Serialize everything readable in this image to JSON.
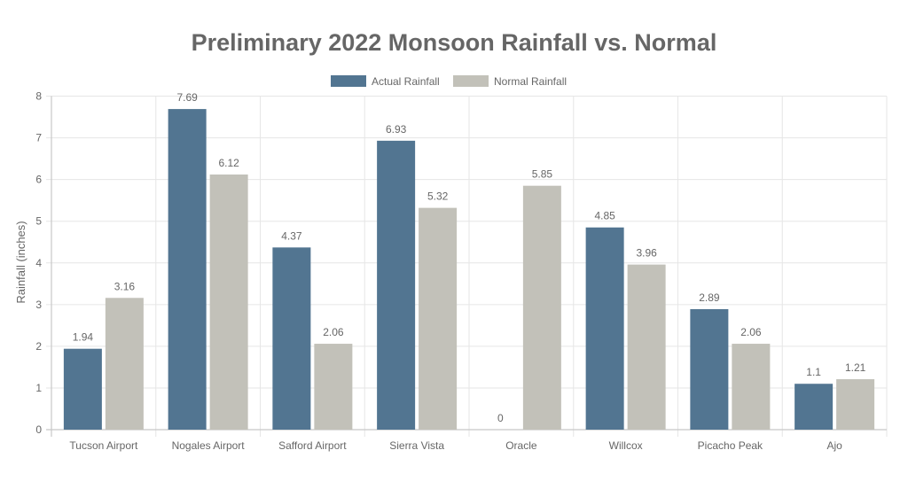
{
  "chart_data": {
    "type": "bar",
    "title": "Preliminary 2022 Monsoon Rainfall vs. Normal",
    "xlabel": "",
    "ylabel": "Rainfall (inches)",
    "ylim": [
      0,
      8
    ],
    "yticks": [
      "0",
      "1",
      "2",
      "3",
      "4",
      "5",
      "6",
      "7",
      "8"
    ],
    "grid": true,
    "legend_position": "top-center",
    "categories": [
      "Tucson Airport",
      "Nogales Airport",
      "Safford Airport",
      "Sierra Vista",
      "Oracle",
      "Willcox",
      "Picacho Peak",
      "Ajo"
    ],
    "series": [
      {
        "name": "Actual Rainfall",
        "color": "#527591",
        "values": [
          1.94,
          7.69,
          4.37,
          6.93,
          0,
          4.85,
          2.89,
          1.1
        ],
        "labels": [
          "1.94",
          "7.69",
          "4.37",
          "6.93",
          "0",
          "4.85",
          "2.89",
          "1.1"
        ]
      },
      {
        "name": "Normal Rainfall",
        "color": "#c2c1b9",
        "values": [
          3.16,
          6.12,
          2.06,
          5.32,
          5.85,
          3.96,
          2.06,
          1.21
        ],
        "labels": [
          "3.16",
          "6.12",
          "2.06",
          "5.32",
          "5.85",
          "3.96",
          "2.06",
          "1.21"
        ]
      }
    ]
  }
}
